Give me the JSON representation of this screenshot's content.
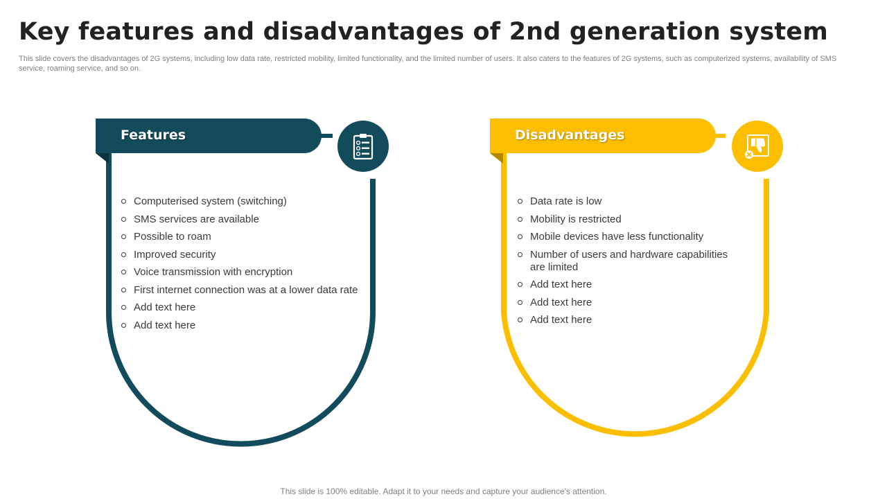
{
  "slide": {
    "title": "Key features and disadvantages of 2nd generation system",
    "subtitle": "This slide covers the disadvantages of 2G systems, including low data rate, restricted mobility, limited functionality, and the limited number of users. It also caters to the features of 2G systems, such as computerized systems, availability of SMS service, roaming service, and so on.",
    "footer": "This slide is 100% editable. Adapt it to your needs and capture your audience's attention."
  },
  "features": {
    "header": "Features",
    "icon": "clipboard-checklist-icon",
    "color": "#124c5c",
    "items": [
      "Computerised system (switching)",
      "SMS services are available",
      "Possible to roam",
      "Improved security",
      "Voice transmission with encryption",
      "First internet connection was at a lower data rate",
      "Add text here",
      "Add text here"
    ]
  },
  "disadvantages": {
    "header": "Disadvantages",
    "icon": "thumbs-down-icon",
    "color": "#fbbf00",
    "items": [
      "Data rate is low",
      "Mobility  is restricted",
      "Mobile devices have less functionality",
      "Number of users and hardware capabilities are limited",
      "Add text here",
      "Add text here",
      "Add text here"
    ]
  }
}
